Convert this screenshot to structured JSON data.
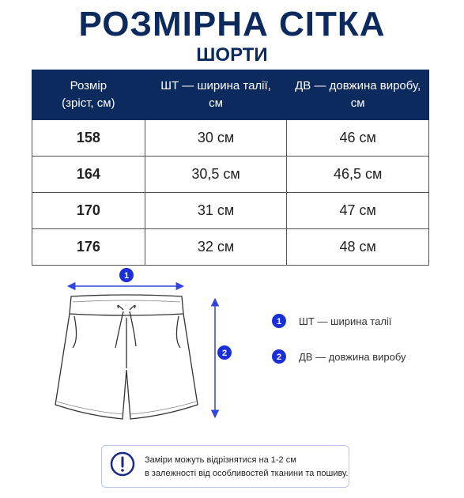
{
  "header": {
    "title": "РОЗМІРНА СІТКА",
    "subtitle": "ШОРТИ"
  },
  "table": {
    "headers": [
      [
        "Розмір",
        "(зріст, см)"
      ],
      [
        "ШТ — ширина талії,",
        "см"
      ],
      [
        "ДВ — довжина виробу,",
        "см"
      ]
    ],
    "rows": [
      [
        "158",
        "30 см",
        "46 см"
      ],
      [
        "164",
        "30,5 см",
        "46,5 см"
      ],
      [
        "170",
        "31 см",
        "47 см"
      ],
      [
        "176",
        "32 см",
        "48 см"
      ]
    ]
  },
  "legend": {
    "items": [
      {
        "number": "1",
        "text": "ШТ — ширина талії"
      },
      {
        "number": "2",
        "text": "ДВ — довжина виробу"
      }
    ]
  },
  "note": {
    "lines": [
      "Заміри можуть відрізнятися на 1-2 см",
      "в залежності від особливостей тканини та пошиву."
    ]
  }
}
